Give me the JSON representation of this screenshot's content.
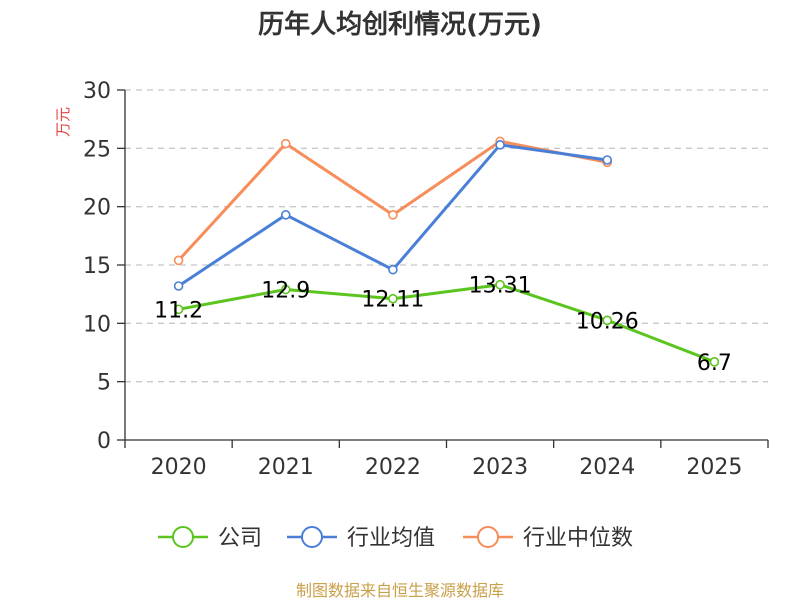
{
  "chart_data": {
    "type": "line",
    "title": "历年人均创利情况(万元)",
    "ylabel": "万元",
    "xlabel": "",
    "categories": [
      "2020",
      "2021",
      "2022",
      "2023",
      "2024",
      "2025"
    ],
    "ylim": [
      0,
      30
    ],
    "yticks": [
      0,
      5,
      10,
      15,
      20,
      25,
      30
    ],
    "grid": true,
    "legend_position": "bottom",
    "series": [
      {
        "name": "公司",
        "color": "#5cc41e",
        "values": [
          11.2,
          12.9,
          12.11,
          13.31,
          10.26,
          6.7
        ],
        "data_labels": [
          "11.2",
          "12.9",
          "12.11",
          "13.31",
          "10.26",
          "6.7"
        ]
      },
      {
        "name": "行业均值",
        "color": "#4a7fd8",
        "values": [
          13.2,
          19.3,
          14.6,
          25.3,
          24.0,
          null
        ]
      },
      {
        "name": "行业中位数",
        "color": "#f78d5a",
        "values": [
          15.4,
          25.4,
          19.3,
          25.6,
          23.8,
          null
        ]
      }
    ]
  },
  "footer": {
    "source": "制图数据来自恒生聚源数据库"
  }
}
